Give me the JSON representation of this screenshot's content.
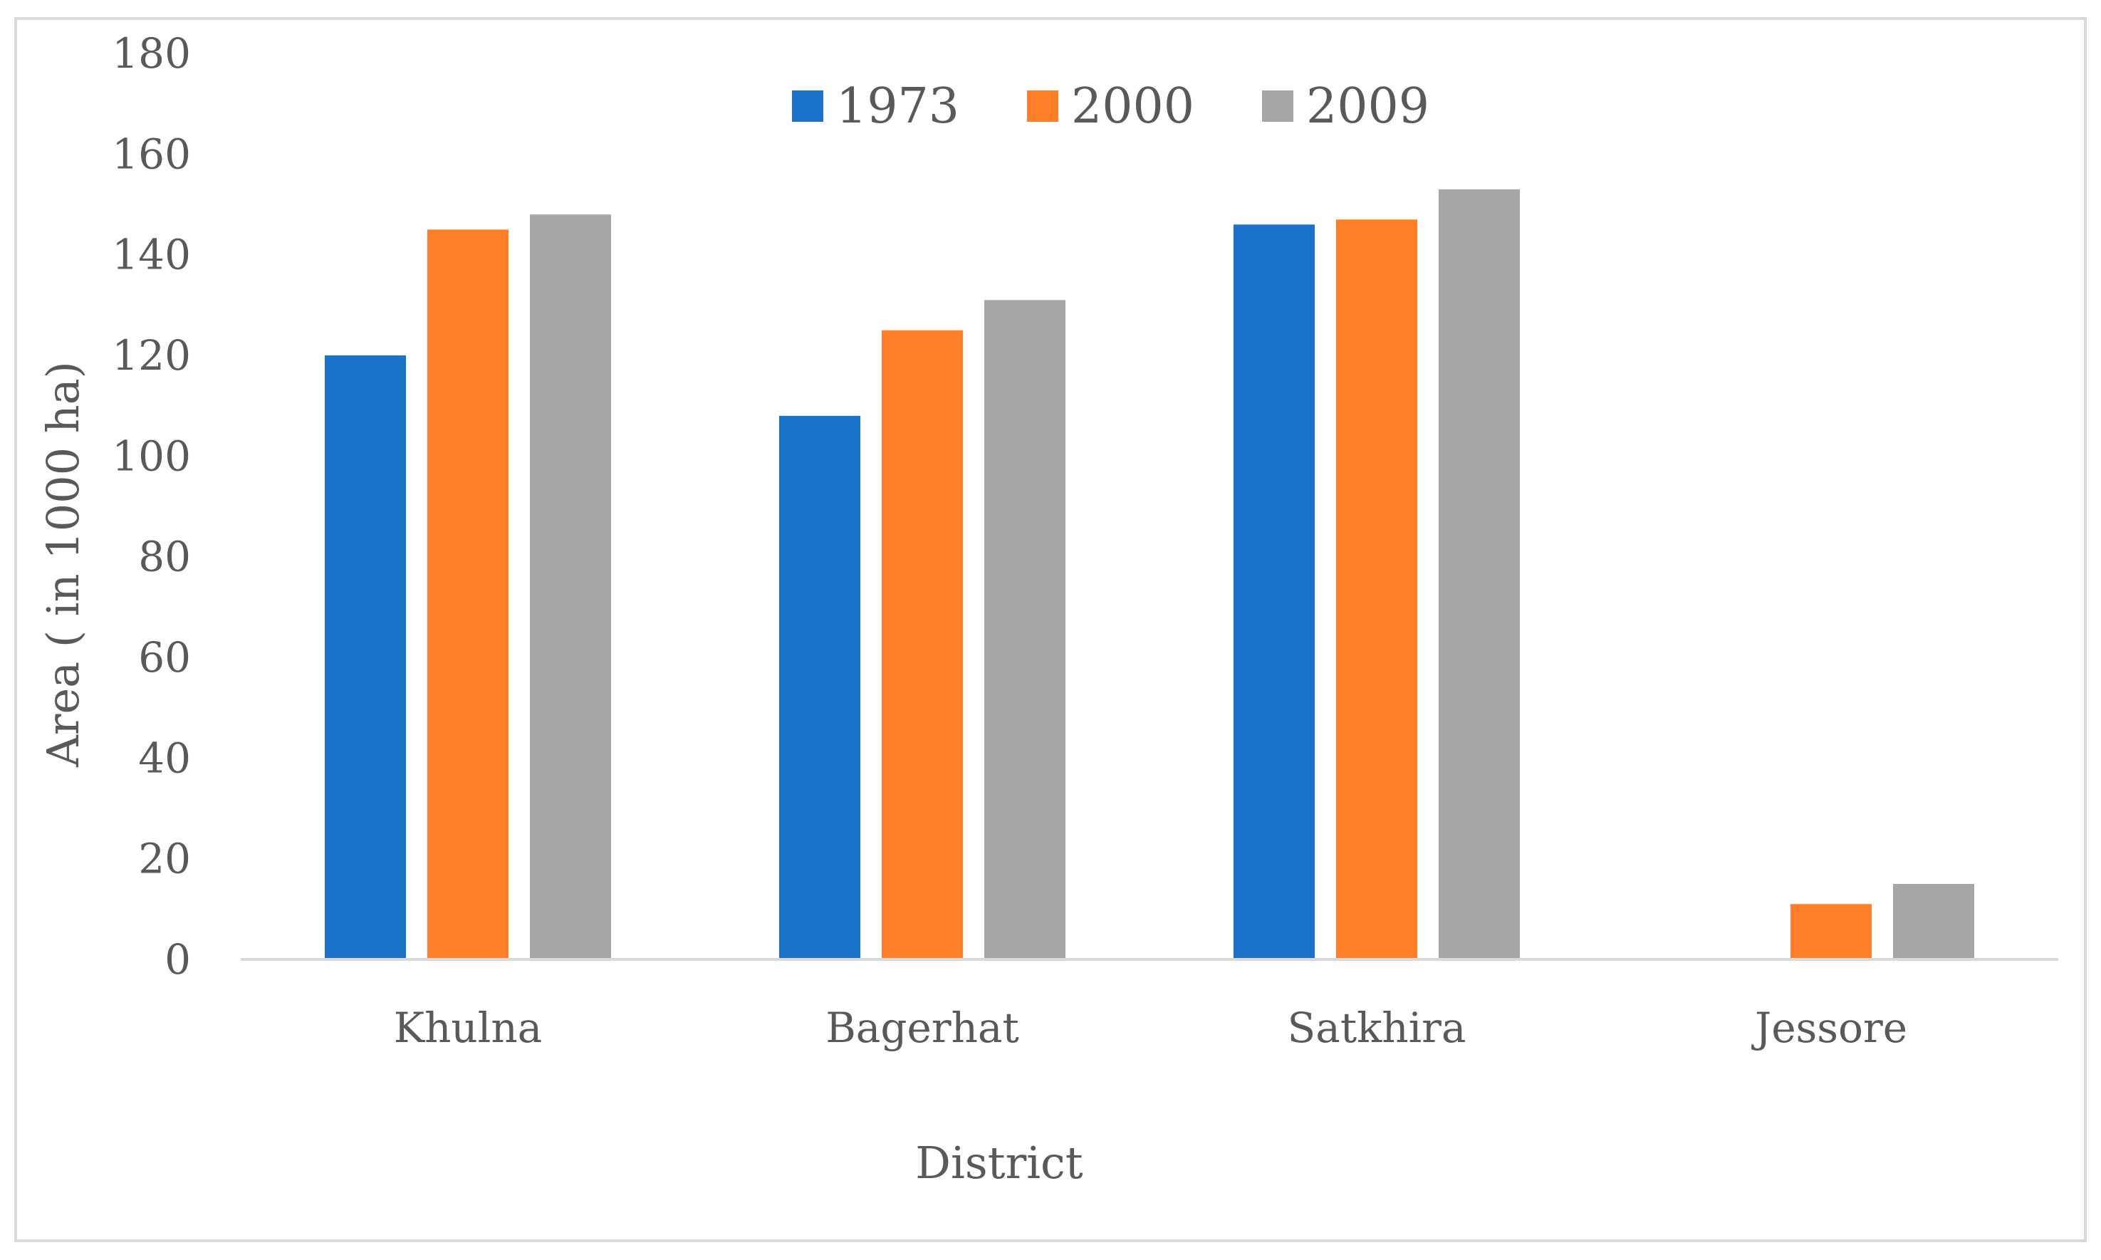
{
  "chart_data": {
    "type": "bar",
    "title": "",
    "xlabel": "District",
    "ylabel": "Area ( in 1000 ha)",
    "categories": [
      "Khulna",
      "Bagerhat",
      "Satkhira",
      "Jessore"
    ],
    "series": [
      {
        "name": "1973",
        "color": "#1a73c8",
        "values": [
          120,
          108,
          146,
          0
        ]
      },
      {
        "name": "2000",
        "color": "#fe7f27",
        "values": [
          145,
          125,
          147,
          11
        ]
      },
      {
        "name": "2009",
        "color": "#a6a6a6",
        "values": [
          148,
          131,
          153,
          15
        ]
      }
    ],
    "ylim": [
      0,
      180
    ],
    "yticks": [
      "0",
      "20",
      "40",
      "60",
      "80",
      "100",
      "120",
      "140",
      "160",
      "180"
    ],
    "grid": false,
    "legend_position": "top-center"
  }
}
